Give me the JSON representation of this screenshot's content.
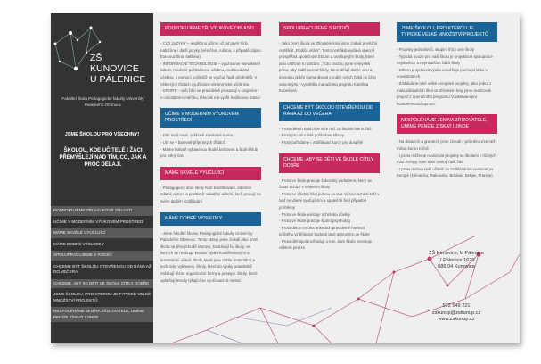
{
  "sidebar": {
    "title_line1": "ZŠ KUNOVICE",
    "title_line2": "U PÁLENICE",
    "faculty": "Fakultní škola Pedagogické fakulty Univerzity Palackého Olomouc",
    "slogan1": "JSME ŠKOLOU PRO VŠECHNY!",
    "slogan2": "ŠKOLOU, KDE UČITELÉ I ŽÁCI PŘEMÝŠLEJÍ NAD TÍM, CO, JAK A PROČ DĚLAJÍ.",
    "nav": [
      "PODPORUJEME TŘI VÝUKOVÉ OBLASTI",
      "UČÍME V MODERNÍM VÝUKOVÉM PROSTŘEDÍ",
      "MÁME SKVĚLÉ VYUČUJÍCÍ",
      "MÁME DOBRÉ VÝSLEDKY",
      "SPOLUPRACUJEME S RODIČI",
      "CHCEME BÝT ŠKOLOU OTEVŘENOU OD RÁNA AŽ DO VEČERA",
      "CHCEME, ABY SE DĚTI VE ŠKOLE CÍTILY DOBŘE",
      "JSME ŠKOLOU, PRO KTEROU JE TYPICKÉ VELKÉ MNOŽSTVÍ PROJEKTŮ",
      "NESPOLÉHÁME JEN NA ZŘIZOVATELE, UMÍME PENÍZE ZÍSKAT I JINDE"
    ]
  },
  "colors": {
    "pink": "#c62a60",
    "blue": "#1a6396",
    "dark": "#333333"
  },
  "col1": [
    {
      "h": "PODPORUJEME TŘI VÝUKOVÉ OBLASTI",
      "color": "pink",
      "t": "- CIZÍ JAZYKY – angličtinu učíme už od první třídy, nabízíme i další jazyky (němčina, ruština, v případě zájmu francouzština, italština)\n- INFORMAČNÍ TECHNOLOGIE – využíváme interaktivní tabule, moderní počítačovou učebnu, multimediální učebnu, s pomocí počítačů se vyučují řadě předmětů. V některých třídách využíváme elektronické učebnice.\n- SPORT – naši žáci se pravidelně prosazují v krajském i v celostátním měřítku, tělocvik má vyšší hodinovou dotaci"
    },
    {
      "h": "UČÍME V MODERNÍM VÝUKOVÉM PROSTŘEDÍ",
      "color": "blue",
      "t": "- Děti mají nové, výškově stavitelné lavice\n- Učí se v barevně příjemných třídách\n- Máme bohatě vybavenou školní knihovnu a školní klub pro volný čas"
    },
    {
      "h": "MÁME SKVĚLÉ VYUČUJÍCÍ",
      "color": "pink",
      "t": "- Pedagogický sbor školy tvoří kvalifikovaní, odborně zdatní, aktivní a pozitivně naladění učitelé, kteří pracují na svém dalším vzdělávání"
    },
    {
      "h": "MÁME DOBRÉ VÝSLEDKY",
      "color": "blue",
      "t": "- Jsme fakultní školou Pedagogické fakulty Univerzity Palackého Olomouc. Tento status jsme získali jako první škola na jihovýchodě Moravy. Dostávají ho školy, ve kterých se realizuje kvalitní výuka kvalifikovanými a kreativními učiteli. Školy, které jsou dobře materiálně a technicky vybaveny. Školy, které do výuky pravidelně zařazují různé organizační formy a postupy. Školy, které uplatňují trendy týkající se vyučovacích metod."
    }
  ],
  "col2": [
    {
      "h": "SPOLUPRACUJEME S RODIČI",
      "color": "pink",
      "t": "- Jako první škola ve Zlínském kraji jsme získali prestižní certifikát „Rodiče vítáni“. Tento certifikát vydává obecně prospěšná společnost EDUin a oceňuje jím školy, které jsou vstřícné k rodičům. „Tuto značku jsme vymysleli proto, aby rodič poznal školy, které dělají dobré věci a dovedou dobře komunikovat s rodiči svých žáků i s žáky samotnými,“ vysvětlila manažerka projektu Kateřina Kubešová."
    },
    {
      "h": "CHCEME BÝT ŠKOLOU OTEVŘENOU OD RÁNA AŽ DO VEČERA",
      "color": "blue",
      "t": "- Proto dětem nabízíme více než 20 školních kroužků\n- Proto pro ně v létě pořádáme tábory\n- Proto pořádáme i vzdělávací kurzy pro dospělé"
    },
    {
      "h": "CHCEME, ABY SE DĚTI VE ŠKOLE CÍTILY DOBŘE",
      "color": "pink",
      "t": "- Proto ve škole pracuje žákovský parlament, který se často schází s vedením školy\n- Proto se všichni žáci jednou za dva měsíce schází tvář v tvář se všemi vyučujícími a společně řeší případné problémy\n- Proto ve škole existuje schránka důvěry\n- Proto ve škole pracuje školní psycholog\n- Proto děti v mnoha anketách pravidelně hodnotí průběhu vzdělávání hodnotí také atmosféru ve škole\n- Proto děti spolurozhodují o tom, kam škola investuje některé peníze"
    }
  ],
  "col3": [
    {
      "h": "JSME ŠKOLOU, PRO KTEROU JE TYPICKÉ VELKÉ MNOŽSTVÍ PROJEKTŮ",
      "color": "blue",
      "t": "- Projekty jednotlivců, skupin, tříd i celé školy\n- Typická pouze pro naši školu je projektová spolupráce nejstarších a nejmladších žáků školy\n- Dětem projektová výuka umožňuje pochopit látku v souvislostech.\n- Získáváme také velké evropské projekty, jako jedna z mála základních škol ve Zlínském kraji jsme realizovali projekt z operačního programu Vzdělávání pro konkurenceschopnost."
    },
    {
      "h": "NESPOLÉHÁME JEN NA ZŘIZOVATELE, UMÍME PENÍZE ZÍSKAT I JINDE",
      "color": "pink",
      "t": "- Na dotacích a grantech jsme získali v průměru více než milion korun ročně\n- I proto můžeme realizovat projekty se školami z různých míst Evropy, kam také cestují naši žáci\n- I proto mohou naši učitelé za vzděláváním cestovat po Evropě (Německo, Rakousko, Británie, Belgie, Francie)"
    }
  ],
  "contact": {
    "address": "ZŠ Kunovice, U Pálenice\nU Pálenice 1620\n686 04 Kunovice",
    "phone": "572 549 221\nzskunup@zskunup.cz\nwww.zskunup.cz"
  }
}
